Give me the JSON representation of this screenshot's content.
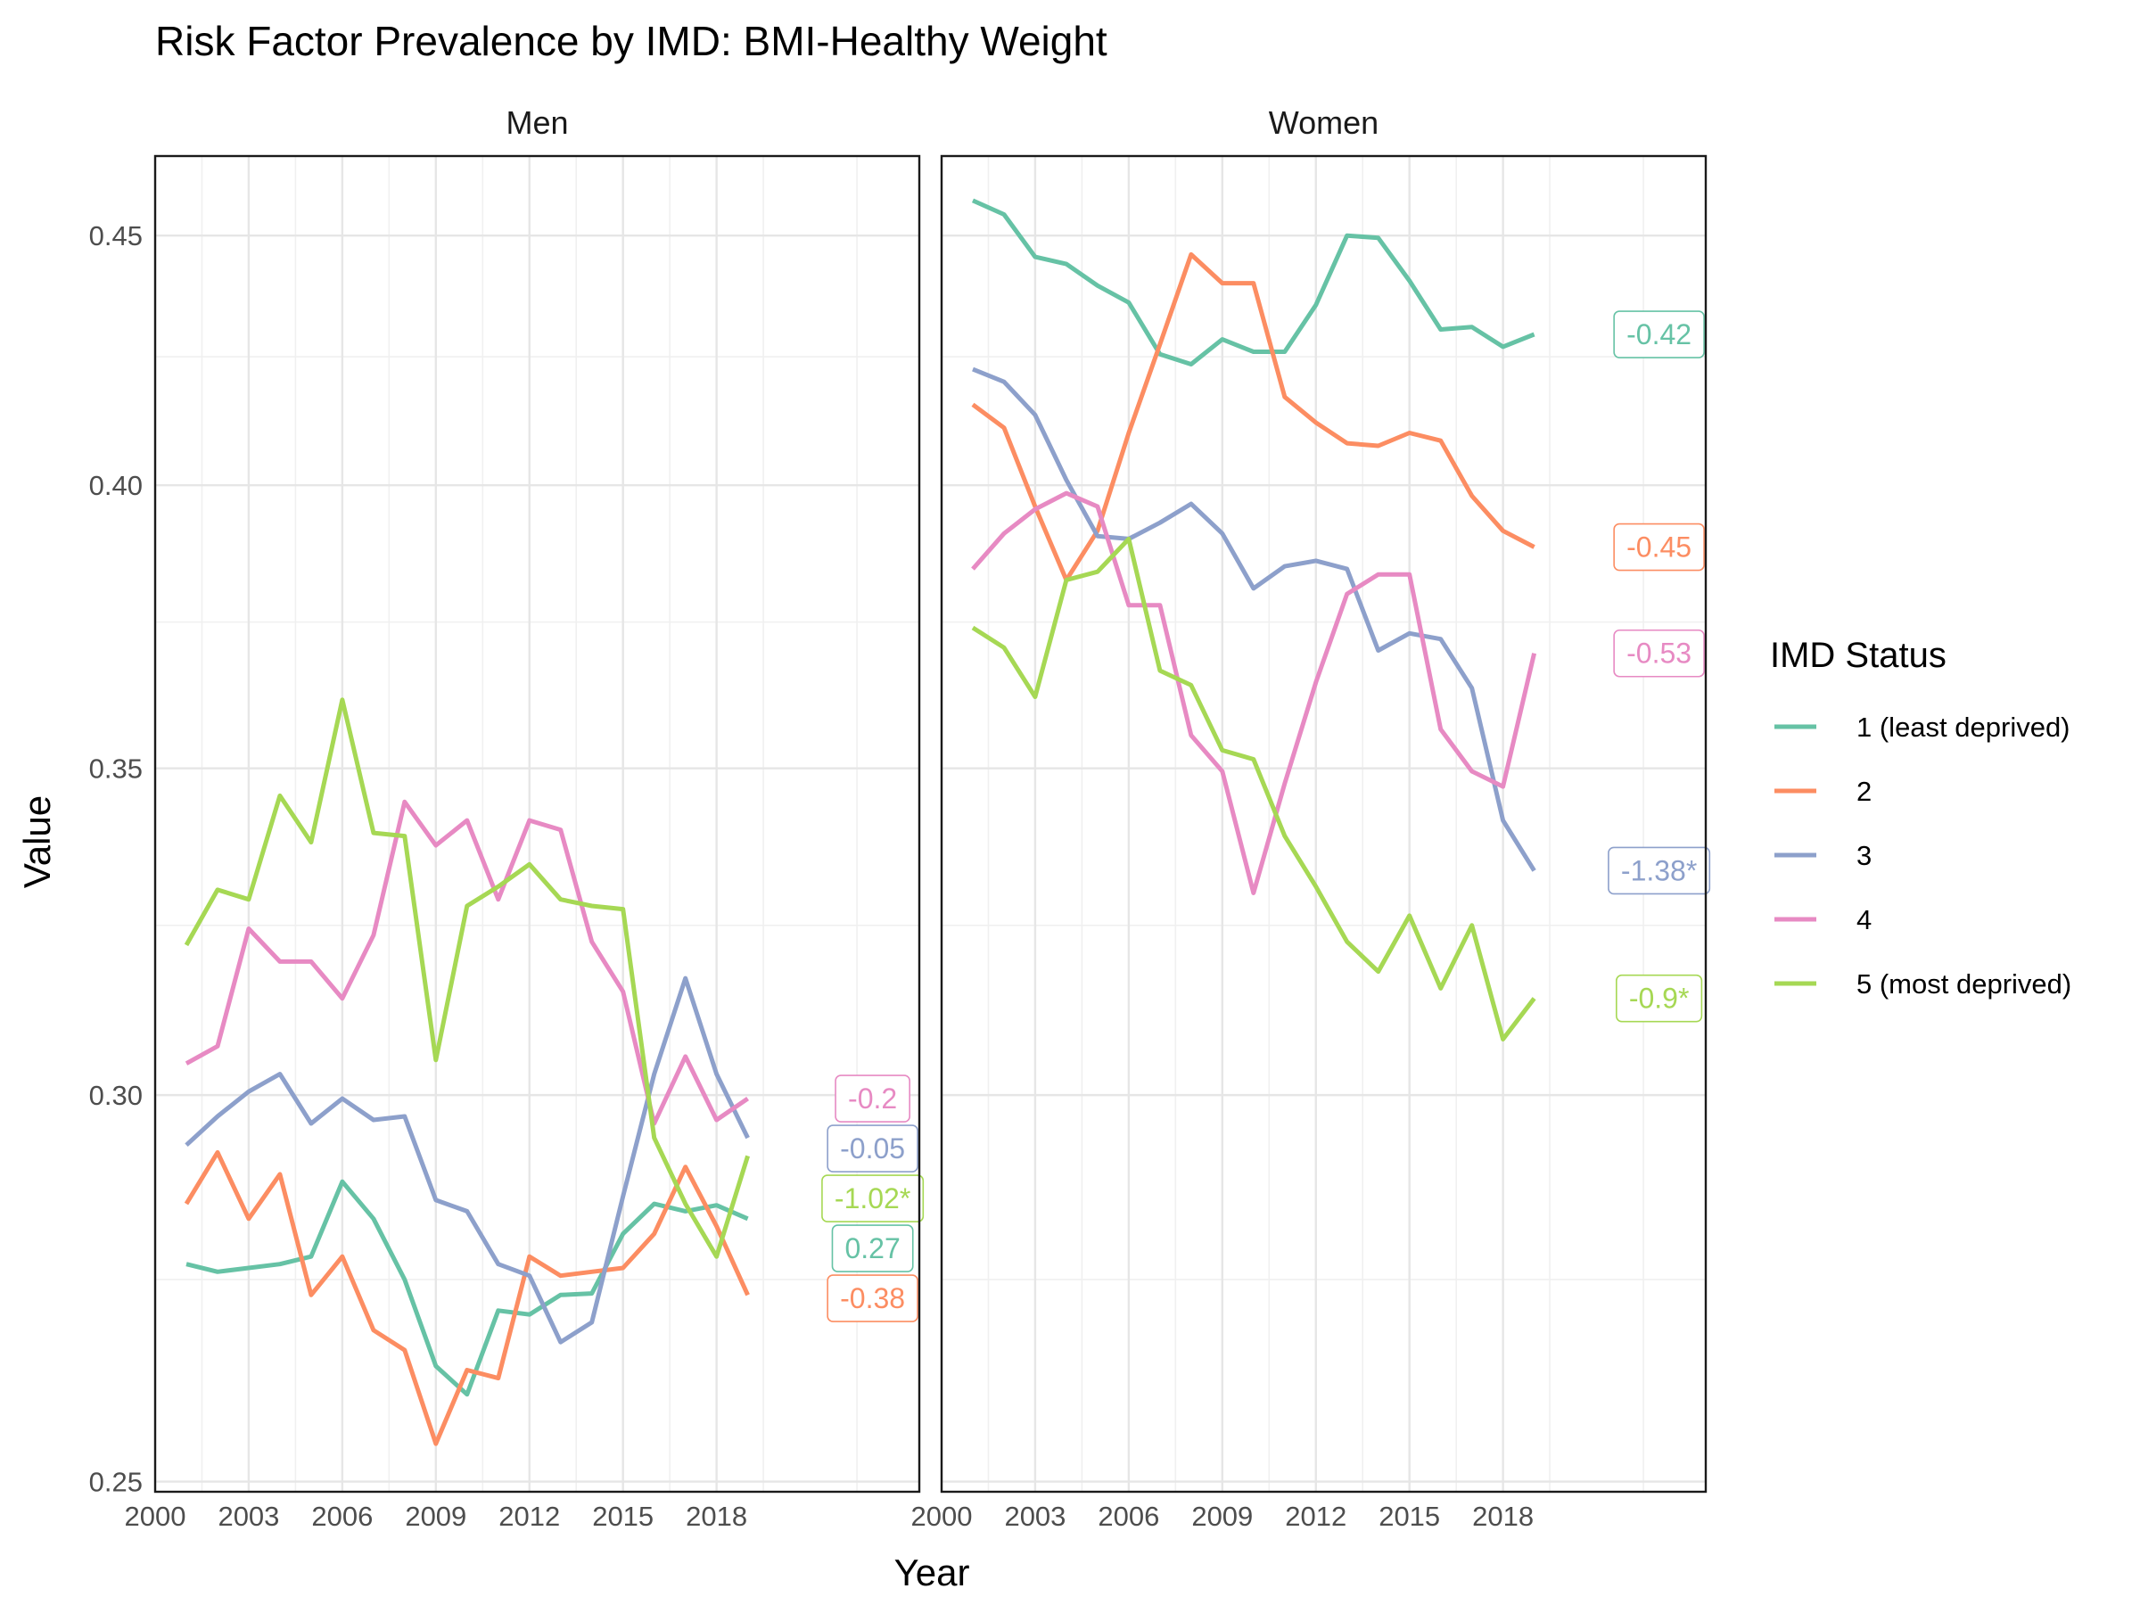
{
  "chart_data": {
    "type": "line",
    "title": "Risk Factor Prevalence by IMD: BMI-Healthy Weight",
    "xlabel": "Year",
    "ylabel": "Value",
    "x_ticks": [
      2000,
      2003,
      2006,
      2009,
      2012,
      2015,
      2018
    ],
    "xlim": [
      2000,
      2024.5
    ],
    "y_ticks": [
      "0.25",
      "0.30",
      "0.35",
      "0.40",
      "0.45"
    ],
    "y_scale": "log",
    "ylim": [
      0.2488,
      0.4672
    ],
    "grid": true,
    "legend": {
      "title": "IMD Status",
      "position": "right",
      "entries": [
        "1 (least deprived)",
        "2",
        "3",
        "4",
        "5 (most deprived)"
      ]
    },
    "colors": {
      "1": "#66c2a5",
      "2": "#fc8d62",
      "3": "#8da0cb",
      "4": "#e78ac3",
      "5": "#a6d854"
    },
    "x": [
      2001,
      2002,
      2003,
      2004,
      2005,
      2006,
      2007,
      2008,
      2009,
      2010,
      2011,
      2012,
      2013,
      2014,
      2015,
      2016,
      2017,
      2018,
      2019
    ],
    "panels": [
      {
        "name": "Men",
        "series": [
          {
            "key": "1",
            "name": "1 (least deprived)",
            "values": [
              0.277,
              0.276,
              0.2765,
              0.277,
              0.278,
              0.288,
              0.283,
              0.275,
              0.264,
              0.2605,
              0.271,
              0.2705,
              0.273,
              0.2732,
              0.281,
              0.285,
              0.284,
              0.2848,
              0.283
            ]
          },
          {
            "key": "2",
            "name": "2",
            "values": [
              0.285,
              0.292,
              0.283,
              0.289,
              0.273,
              0.278,
              0.2685,
              0.266,
              0.2545,
              0.2635,
              0.2625,
              0.278,
              0.2755,
              0.276,
              0.2765,
              0.281,
              0.29,
              0.282,
              0.273
            ]
          },
          {
            "key": "3",
            "name": "3",
            "values": [
              0.293,
              0.297,
              0.3005,
              0.303,
              0.296,
              0.2995,
              0.2965,
              0.297,
              0.2855,
              0.284,
              0.277,
              0.2755,
              0.267,
              0.2695,
              0.286,
              0.303,
              0.317,
              0.303,
              0.294
            ]
          },
          {
            "key": "4",
            "name": "4",
            "values": [
              0.3045,
              0.307,
              0.3245,
              0.3195,
              0.3195,
              0.314,
              0.3235,
              0.3445,
              0.3375,
              0.3415,
              0.329,
              0.3415,
              0.34,
              0.3225,
              0.315,
              0.296,
              0.3055,
              0.2965,
              0.2995
            ]
          },
          {
            "key": "5",
            "name": "5 (most deprived)",
            "values": [
              0.322,
              0.3305,
              0.329,
              0.3455,
              0.338,
              0.3615,
              0.3395,
              0.339,
              0.305,
              0.328,
              0.331,
              0.3345,
              0.329,
              0.328,
              0.3275,
              0.294,
              0.285,
              0.278,
              0.2915
            ]
          }
        ],
        "labels": [
          {
            "key": "4",
            "text": "-0.2"
          },
          {
            "key": "3",
            "text": "-0.05"
          },
          {
            "key": "5",
            "text": "-1.02*"
          },
          {
            "key": "1",
            "text": "0.27"
          },
          {
            "key": "2",
            "text": "-0.38"
          }
        ]
      },
      {
        "name": "Women",
        "series": [
          {
            "key": "1",
            "name": "1 (least deprived)",
            "values": [
              0.4575,
              0.4545,
              0.4455,
              0.444,
              0.4395,
              0.436,
              0.4255,
              0.4235,
              0.4285,
              0.426,
              0.426,
              0.4355,
              0.45,
              0.4495,
              0.4405,
              0.4305,
              0.431,
              0.427,
              0.4295
            ]
          },
          {
            "key": "2",
            "name": "2",
            "values": [
              0.4155,
              0.411,
              0.396,
              0.3825,
              0.3915,
              0.41,
              0.4275,
              0.446,
              0.44,
              0.44,
              0.417,
              0.412,
              0.408,
              0.4075,
              0.41,
              0.4085,
              0.398,
              0.3915,
              0.3885
            ]
          },
          {
            "key": "3",
            "name": "3",
            "values": [
              0.4225,
              0.42,
              0.4135,
              0.401,
              0.3905,
              0.39,
              0.393,
              0.3965,
              0.391,
              0.381,
              0.385,
              0.386,
              0.3845,
              0.37,
              0.373,
              0.372,
              0.3635,
              0.3415,
              0.3335
            ]
          },
          {
            "key": "4",
            "name": "4",
            "values": [
              0.3845,
              0.391,
              0.3955,
              0.3985,
              0.396,
              0.378,
              0.378,
              0.3555,
              0.3495,
              0.33,
              0.3475,
              0.3645,
              0.38,
              0.3835,
              0.3835,
              0.3565,
              0.3495,
              0.347,
              0.3695
            ]
          },
          {
            "key": "5",
            "name": "5 (most deprived)",
            "values": [
              0.374,
              0.3705,
              0.362,
              0.3825,
              0.384,
              0.39,
              0.3665,
              0.364,
              0.353,
              0.3515,
              0.339,
              0.331,
              0.3225,
              0.318,
              0.3265,
              0.3155,
              0.325,
              0.308,
              0.314
            ]
          }
        ],
        "labels": [
          {
            "key": "1",
            "text": "-0.42"
          },
          {
            "key": "2",
            "text": "-0.45"
          },
          {
            "key": "4",
            "text": "-0.53"
          },
          {
            "key": "3",
            "text": "-1.38*"
          },
          {
            "key": "5",
            "text": "-0.9*"
          }
        ]
      }
    ]
  }
}
